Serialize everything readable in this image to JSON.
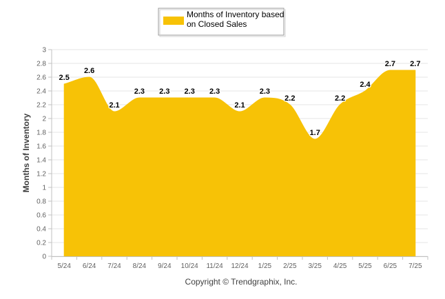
{
  "chart_data": {
    "type": "area",
    "categories": [
      "5/24",
      "6/24",
      "7/24",
      "8/24",
      "9/24",
      "10/24",
      "11/24",
      "12/24",
      "1/25",
      "2/25",
      "3/25",
      "4/25",
      "5/25",
      "6/25",
      "7/25"
    ],
    "series": [
      {
        "name": "Months of Inventory based on Closed Sales",
        "values": [
          2.5,
          2.6,
          2.1,
          2.3,
          2.3,
          2.3,
          2.3,
          2.1,
          2.3,
          2.2,
          1.7,
          2.2,
          2.4,
          2.7,
          2.7
        ],
        "color": "#F7C206"
      }
    ],
    "data_labels": [
      "2.5",
      "2.6",
      "2.1",
      "2.3",
      "2.3",
      "2.3",
      "2.3",
      "2.1",
      "2.3",
      "2.2",
      "1.7",
      "2.2",
      "2.4",
      "2.7",
      "2.7"
    ],
    "ylabel": "Months of Inventory",
    "ylim": [
      0,
      3
    ],
    "yticks": [
      0,
      0.2,
      0.4,
      0.6,
      0.8,
      1,
      1.2,
      1.4,
      1.6,
      1.8,
      2,
      2.2,
      2.4,
      2.6,
      2.8,
      3
    ],
    "ytick_labels": [
      "0",
      "0.2",
      "0.4",
      "0.6",
      "0.8",
      "1",
      "1.2",
      "1.4",
      "1.6",
      "1.8",
      "2",
      "2.2",
      "2.4",
      "2.6",
      "2.8",
      "3"
    ],
    "grid": true,
    "legend_position": "top-center",
    "legend_lines": [
      "Months of Inventory based",
      "on Closed Sales"
    ],
    "credits": "Copyright © Trendgraphix, Inc."
  }
}
